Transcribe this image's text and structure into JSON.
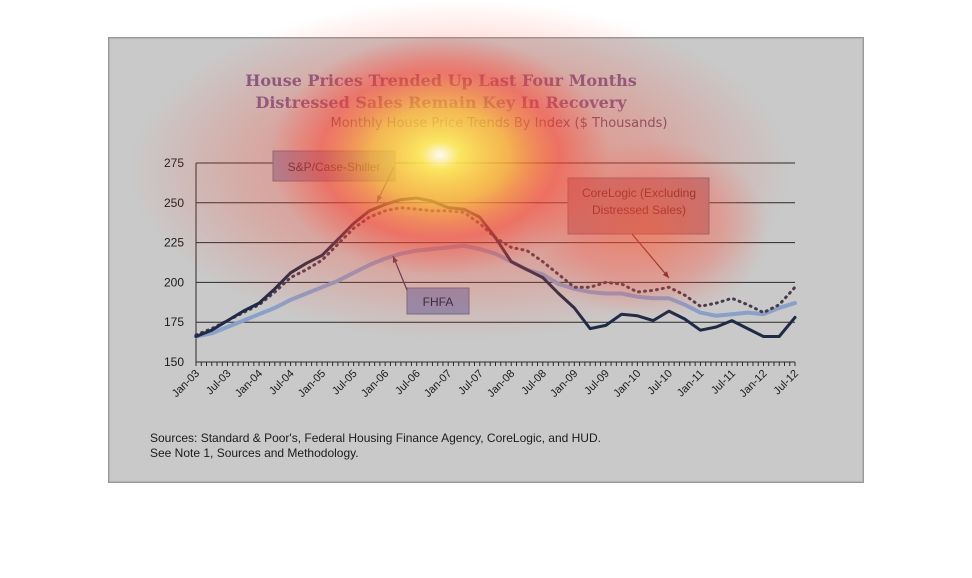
{
  "chart_data": {
    "type": "line",
    "title": "House Prices Trended Up Last Four Months",
    "subtitle": "Distressed Sales Remain Key In Recovery",
    "subtitle2": "Monthly House Price Trends By Index ($ Thousands)",
    "xlabel": "",
    "ylabel": "",
    "ylim": [
      150,
      275
    ],
    "yticks": [
      150,
      175,
      200,
      225,
      250,
      275
    ],
    "grid": true,
    "x_ticks": [
      "Jan-03",
      "Jul-03",
      "Jan-04",
      "Jul-04",
      "Jan-05",
      "Jul-05",
      "Jan-06",
      "Jul-06",
      "Jan-07",
      "Jul-07",
      "Jan-08",
      "Jul-08",
      "Jan-09",
      "Jul-09",
      "Jan-10",
      "Jul-10",
      "Jan-11",
      "Jul-11",
      "Jan-12",
      "Jul-12"
    ],
    "x_dates": [
      "2003-01",
      "2003-07",
      "2004-01",
      "2004-07",
      "2005-01",
      "2005-07",
      "2006-01",
      "2006-07",
      "2007-01",
      "2007-07",
      "2008-01",
      "2008-07",
      "2009-01",
      "2009-07",
      "2010-01",
      "2010-07",
      "2011-01",
      "2011-07",
      "2012-01",
      "2012-07"
    ],
    "series": [
      {
        "name": "S&P/Case-Shiller",
        "color": "#1f2a44",
        "style": "solid",
        "points": [
          [
            "2003-01",
            166
          ],
          [
            "2003-04",
            170
          ],
          [
            "2003-07",
            176
          ],
          [
            "2003-10",
            182
          ],
          [
            "2004-01",
            187
          ],
          [
            "2004-04",
            196
          ],
          [
            "2004-07",
            206
          ],
          [
            "2004-10",
            212
          ],
          [
            "2005-01",
            217
          ],
          [
            "2005-04",
            227
          ],
          [
            "2005-07",
            237
          ],
          [
            "2005-10",
            245
          ],
          [
            "2006-01",
            249
          ],
          [
            "2006-04",
            252
          ],
          [
            "2006-07",
            253
          ],
          [
            "2006-10",
            251
          ],
          [
            "2007-01",
            247
          ],
          [
            "2007-04",
            246
          ],
          [
            "2007-07",
            241
          ],
          [
            "2007-10",
            228
          ],
          [
            "2008-01",
            213
          ],
          [
            "2008-04",
            208
          ],
          [
            "2008-07",
            203
          ],
          [
            "2008-10",
            193
          ],
          [
            "2009-01",
            184
          ],
          [
            "2009-04",
            171
          ],
          [
            "2009-07",
            173
          ],
          [
            "2009-10",
            180
          ],
          [
            "2010-01",
            179
          ],
          [
            "2010-04",
            176
          ],
          [
            "2010-07",
            182
          ],
          [
            "2010-10",
            177
          ],
          [
            "2011-01",
            170
          ],
          [
            "2011-04",
            172
          ],
          [
            "2011-07",
            176
          ],
          [
            "2011-10",
            171
          ],
          [
            "2012-01",
            166
          ],
          [
            "2012-04",
            166
          ],
          [
            "2012-07",
            178
          ]
        ]
      },
      {
        "name": "CoreLogic (Excluding Distressed Sales)",
        "color": "#4a3a4a",
        "style": "dotted",
        "points": [
          [
            "2003-01",
            167
          ],
          [
            "2003-04",
            171
          ],
          [
            "2003-07",
            176
          ],
          [
            "2003-10",
            181
          ],
          [
            "2004-01",
            186
          ],
          [
            "2004-04",
            194
          ],
          [
            "2004-07",
            203
          ],
          [
            "2004-10",
            208
          ],
          [
            "2005-01",
            214
          ],
          [
            "2005-04",
            224
          ],
          [
            "2005-07",
            234
          ],
          [
            "2005-10",
            241
          ],
          [
            "2006-01",
            245
          ],
          [
            "2006-04",
            247
          ],
          [
            "2006-07",
            246
          ],
          [
            "2006-10",
            245
          ],
          [
            "2007-01",
            245
          ],
          [
            "2007-04",
            244
          ],
          [
            "2007-07",
            237
          ],
          [
            "2007-10",
            228
          ],
          [
            "2008-01",
            222
          ],
          [
            "2008-04",
            220
          ],
          [
            "2008-07",
            213
          ],
          [
            "2008-10",
            205
          ],
          [
            "2009-01",
            197
          ],
          [
            "2009-04",
            197
          ],
          [
            "2009-07",
            200
          ],
          [
            "2009-10",
            199
          ],
          [
            "2010-01",
            194
          ],
          [
            "2010-04",
            195
          ],
          [
            "2010-07",
            197
          ],
          [
            "2010-10",
            192
          ],
          [
            "2011-01",
            185
          ],
          [
            "2011-04",
            187
          ],
          [
            "2011-07",
            190
          ],
          [
            "2011-10",
            186
          ],
          [
            "2012-01",
            181
          ],
          [
            "2012-04",
            186
          ],
          [
            "2012-07",
            197
          ]
        ]
      },
      {
        "name": "FHFA",
        "color": "#8aa0c8",
        "style": "solid",
        "points": [
          [
            "2003-01",
            166
          ],
          [
            "2003-04",
            168
          ],
          [
            "2003-07",
            172
          ],
          [
            "2003-10",
            176
          ],
          [
            "2004-01",
            180
          ],
          [
            "2004-04",
            184
          ],
          [
            "2004-07",
            189
          ],
          [
            "2004-10",
            193
          ],
          [
            "2005-01",
            197
          ],
          [
            "2005-04",
            201
          ],
          [
            "2005-07",
            206
          ],
          [
            "2005-10",
            211
          ],
          [
            "2006-01",
            215
          ],
          [
            "2006-04",
            218
          ],
          [
            "2006-07",
            220
          ],
          [
            "2006-10",
            221
          ],
          [
            "2007-01",
            222
          ],
          [
            "2007-04",
            223
          ],
          [
            "2007-07",
            221
          ],
          [
            "2007-10",
            218
          ],
          [
            "2008-01",
            213
          ],
          [
            "2008-04",
            208
          ],
          [
            "2008-07",
            205
          ],
          [
            "2008-10",
            199
          ],
          [
            "2009-01",
            196
          ],
          [
            "2009-04",
            194
          ],
          [
            "2009-07",
            193
          ],
          [
            "2009-10",
            193
          ],
          [
            "2010-01",
            191
          ],
          [
            "2010-04",
            190
          ],
          [
            "2010-07",
            190
          ],
          [
            "2010-10",
            186
          ],
          [
            "2011-01",
            181
          ],
          [
            "2011-04",
            179
          ],
          [
            "2011-07",
            180
          ],
          [
            "2011-10",
            181
          ],
          [
            "2012-01",
            180
          ],
          [
            "2012-04",
            184
          ],
          [
            "2012-07",
            187
          ]
        ]
      }
    ],
    "callouts": [
      {
        "label": "S&P/Case-Shiller",
        "series": 0
      },
      {
        "label_lines": [
          "CoreLogic (Excluding",
          "Distressed Sales)"
        ],
        "series": 1
      },
      {
        "label": "FHFA",
        "series": 2
      }
    ],
    "sources": [
      "Sources:  Standard & Poor's, Federal Housing Finance Agency, CoreLogic, and HUD.",
      "See Note 1, Sources and Methodology."
    ]
  }
}
